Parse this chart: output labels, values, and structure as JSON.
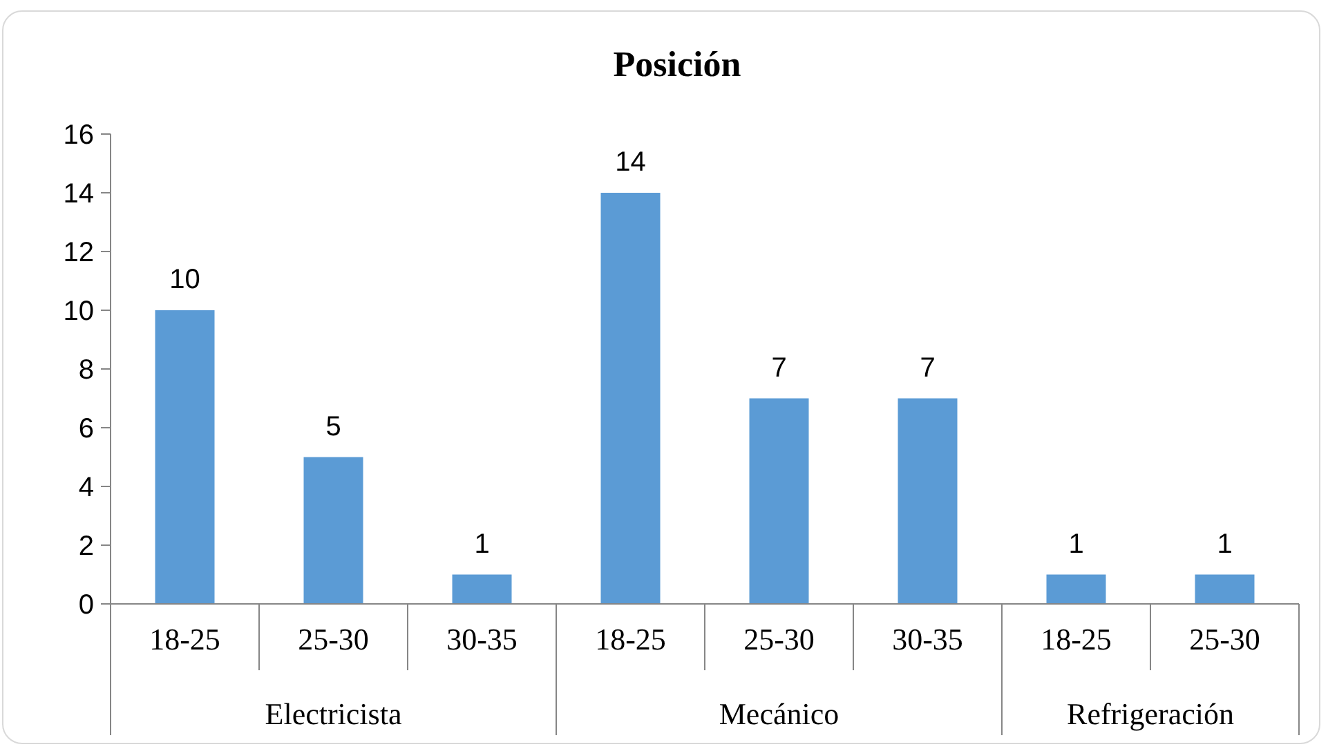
{
  "chart_data": {
    "type": "bar",
    "title": "Posición",
    "categories": [
      "18-25",
      "25-30",
      "30-35",
      "18-25",
      "25-30",
      "30-35",
      "18-25",
      "25-30"
    ],
    "values": [
      10,
      5,
      1,
      14,
      7,
      7,
      1,
      1
    ],
    "color": "#5b9bd5",
    "ylim": [
      0,
      16
    ],
    "yticks": [
      0,
      2,
      4,
      6,
      8,
      10,
      12,
      14,
      16
    ],
    "grid": false,
    "data_labels": true,
    "annotations": [
      "Electricista",
      "Mecánico",
      "Refrigeración"
    ]
  }
}
